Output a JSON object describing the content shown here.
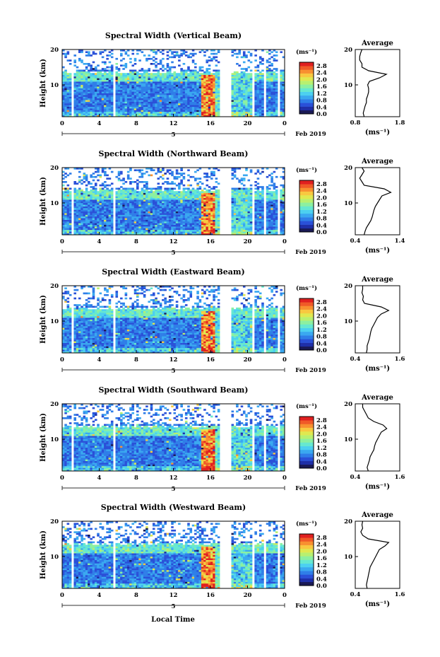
{
  "figure": {
    "xlabel": "Local Time",
    "date_tag": "5",
    "date_label": "Feb 2019",
    "ylabel": "Height (km)",
    "unit": "(ms⁻¹)",
    "avg_title": "Average",
    "avg_xlabel": "(ms⁻¹)",
    "colormap": [
      "#1a1a55",
      "#1f2fa8",
      "#2a50d8",
      "#2f7ee8",
      "#3aa8f0",
      "#4cd0f0",
      "#66e8d0",
      "#8cf0a0",
      "#b8f070",
      "#e0e850",
      "#f8c840",
      "#f89030",
      "#f05a28",
      "#e02020"
    ]
  },
  "chart_data": [
    {
      "type": "heatmap",
      "title": "Spectral Width (Vertical Beam)",
      "xlabel": "Local Time",
      "ylabel": "Height (km)",
      "x_ticks": [
        "0",
        "4",
        "8",
        "12",
        "16",
        "20",
        "0"
      ],
      "xlim": [
        0,
        24
      ],
      "y_ticks": [
        "10",
        "20"
      ],
      "ylim": [
        1,
        20
      ],
      "colorbar": {
        "ticks": [
          "0.0",
          "0.4",
          "0.8",
          "1.2",
          "1.6",
          "2.0",
          "2.4",
          "2.8"
        ],
        "range": [
          0,
          3.0
        ]
      },
      "gaps_hours": [
        [
          1.1,
          1.3
        ],
        [
          5.6,
          5.8
        ],
        [
          17.1,
          18.2
        ],
        [
          20.4,
          20.7
        ],
        [
          21.7,
          22.0
        ],
        [
          23.2,
          23.4
        ]
      ],
      "seed": 11,
      "average": {
        "xticks": [
          "0.8",
          "1.8"
        ],
        "xlim": [
          0.8,
          1.8
        ],
        "heights": [
          1,
          2,
          3,
          4,
          5,
          6,
          7,
          8,
          9,
          10,
          11,
          12,
          13,
          14,
          15,
          16,
          17,
          18,
          19,
          20
        ],
        "values": [
          1.0,
          0.98,
          1.0,
          1.02,
          1.05,
          1.05,
          1.08,
          1.1,
          1.1,
          1.08,
          1.12,
          1.35,
          1.5,
          1.1,
          0.95,
          0.95,
          0.9,
          0.9,
          0.92,
          0.95
        ]
      }
    },
    {
      "type": "heatmap",
      "title": "Spectral Width (Northward Beam)",
      "xlabel": "Local Time",
      "ylabel": "Height (km)",
      "x_ticks": [
        "0",
        "4",
        "8",
        "12",
        "16",
        "20",
        "0"
      ],
      "xlim": [
        0,
        24
      ],
      "y_ticks": [
        "10",
        "20"
      ],
      "ylim": [
        1,
        20
      ],
      "colorbar": {
        "ticks": [
          "0.0",
          "0.4",
          "0.8",
          "1.2",
          "1.6",
          "2.0",
          "2.4",
          "2.8"
        ],
        "range": [
          0,
          3.0
        ]
      },
      "gaps_hours": [
        [
          1.1,
          1.3
        ],
        [
          5.6,
          5.8
        ],
        [
          17.1,
          18.2
        ],
        [
          20.4,
          20.7
        ],
        [
          21.7,
          22.0
        ],
        [
          23.2,
          23.4
        ]
      ],
      "seed": 23,
      "average": {
        "xticks": [
          "0.4",
          "1.4"
        ],
        "xlim": [
          0.4,
          1.4
        ],
        "heights": [
          1,
          2,
          3,
          4,
          5,
          6,
          7,
          8,
          9,
          10,
          11,
          12,
          13,
          14,
          15,
          16,
          17,
          18,
          19,
          20
        ],
        "values": [
          0.6,
          0.62,
          0.65,
          0.7,
          0.75,
          0.78,
          0.8,
          0.82,
          0.85,
          0.9,
          0.95,
          1.0,
          1.2,
          1.05,
          0.6,
          0.55,
          0.5,
          0.55,
          0.6,
          0.55
        ]
      }
    },
    {
      "type": "heatmap",
      "title": "Spectral Width (Eastward Beam)",
      "xlabel": "Local Time",
      "ylabel": "Height (km)",
      "x_ticks": [
        "0",
        "4",
        "8",
        "12",
        "16",
        "20",
        "0"
      ],
      "xlim": [
        0,
        24
      ],
      "y_ticks": [
        "10",
        "20"
      ],
      "ylim": [
        1,
        20
      ],
      "colorbar": {
        "ticks": [
          "0.0",
          "0.4",
          "0.8",
          "1.2",
          "1.6",
          "2.0",
          "2.4",
          "2.8"
        ],
        "range": [
          0,
          3.0
        ]
      },
      "gaps_hours": [
        [
          1.1,
          1.3
        ],
        [
          5.6,
          5.8
        ],
        [
          17.1,
          18.2
        ],
        [
          20.4,
          20.7
        ],
        [
          21.7,
          22.0
        ],
        [
          23.2,
          23.4
        ]
      ],
      "seed": 37,
      "average": {
        "xticks": [
          "0.4",
          "1.6"
        ],
        "xlim": [
          0.4,
          1.6
        ],
        "heights": [
          1,
          2,
          3,
          4,
          5,
          6,
          7,
          8,
          9,
          10,
          11,
          12,
          13,
          14,
          15,
          16,
          17,
          18,
          19,
          20
        ],
        "values": [
          0.7,
          0.72,
          0.72,
          0.75,
          0.78,
          0.8,
          0.82,
          0.85,
          0.9,
          0.95,
          1.0,
          1.1,
          1.3,
          1.1,
          0.65,
          0.6,
          0.62,
          0.58,
          0.6,
          0.6
        ]
      }
    },
    {
      "type": "heatmap",
      "title": "Spectral Width (Southward Beam)",
      "xlabel": "Local Time",
      "ylabel": "Height (km)",
      "x_ticks": [
        "0",
        "4",
        "8",
        "12",
        "16",
        "20",
        "0"
      ],
      "xlim": [
        0,
        24
      ],
      "y_ticks": [
        "10",
        "20"
      ],
      "ylim": [
        1,
        20
      ],
      "colorbar": {
        "ticks": [
          "0.0",
          "0.4",
          "0.8",
          "1.2",
          "1.6",
          "2.0",
          "2.4",
          "2.8"
        ],
        "range": [
          0,
          3.0
        ]
      },
      "gaps_hours": [
        [
          1.1,
          1.3
        ],
        [
          5.6,
          5.8
        ],
        [
          17.1,
          18.2
        ],
        [
          20.4,
          20.7
        ],
        [
          21.7,
          22.0
        ],
        [
          23.2,
          23.4
        ]
      ],
      "seed": 51,
      "average": {
        "xticks": [
          "0.4",
          "1.6"
        ],
        "xlim": [
          0.4,
          1.6
        ],
        "heights": [
          1,
          2,
          3,
          4,
          5,
          6,
          7,
          8,
          9,
          10,
          11,
          12,
          13,
          14,
          15,
          16,
          17,
          18,
          19,
          20
        ],
        "values": [
          0.75,
          0.72,
          0.75,
          0.78,
          0.8,
          0.85,
          0.9,
          0.92,
          0.95,
          1.0,
          1.05,
          1.1,
          1.25,
          1.15,
          0.9,
          0.75,
          0.7,
          0.65,
          0.6,
          0.6
        ]
      }
    },
    {
      "type": "heatmap",
      "title": "Spectral Width (Westward Beam)",
      "xlabel": "Local Time",
      "ylabel": "Height (km)",
      "x_ticks": [
        "0",
        "4",
        "8",
        "12",
        "16",
        "20",
        "0"
      ],
      "xlim": [
        0,
        24
      ],
      "y_ticks": [
        "10",
        "20"
      ],
      "ylim": [
        1,
        20
      ],
      "colorbar": {
        "ticks": [
          "0.0",
          "0.4",
          "0.8",
          "1.2",
          "1.6",
          "2.0",
          "2.4",
          "2.8"
        ],
        "range": [
          0,
          3.0
        ]
      },
      "gaps_hours": [
        [
          1.1,
          1.3
        ],
        [
          5.6,
          5.8
        ],
        [
          17.1,
          18.2
        ],
        [
          20.4,
          20.7
        ],
        [
          21.7,
          22.0
        ],
        [
          23.2,
          23.4
        ]
      ],
      "seed": 67,
      "average": {
        "xticks": [
          "0.4",
          "1.6"
        ],
        "xlim": [
          0.4,
          1.6
        ],
        "heights": [
          1,
          2,
          3,
          4,
          5,
          6,
          7,
          8,
          9,
          10,
          11,
          12,
          13,
          14,
          15,
          16,
          17,
          18,
          19,
          20
        ],
        "values": [
          0.72,
          0.7,
          0.72,
          0.74,
          0.76,
          0.78,
          0.8,
          0.85,
          0.9,
          0.95,
          1.0,
          1.05,
          1.2,
          1.3,
          0.75,
          0.6,
          0.55,
          0.6,
          0.58,
          0.6
        ]
      }
    }
  ]
}
